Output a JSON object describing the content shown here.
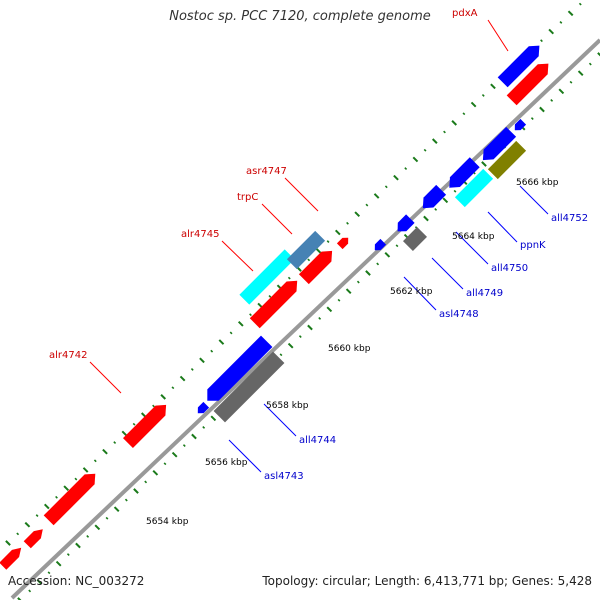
{
  "title": "Nostoc sp. PCC 7120, complete genome",
  "footer": {
    "accession": "Accession: NC_003272",
    "summary": "Topology: circular; Length: 6,413,771 bp; Genes: 5,428"
  },
  "colors": {
    "forward_gene": "#ff0000",
    "reverse_gene": "#0000ff",
    "cyan_feature": "#00ffff",
    "steel_feature": "#4682b4",
    "gray_feature": "#666666",
    "olive_feature": "#808000",
    "backbone": "#999999",
    "tick": "#1a7a1a",
    "forward_label": "#cc0000",
    "reverse_label": "#0000cc",
    "scale_label": "#000000"
  },
  "scale_labels": [
    {
      "label": "5654 kbp"
    },
    {
      "label": "5656 kbp"
    },
    {
      "label": "5658 kbp"
    },
    {
      "label": "5660 kbp"
    },
    {
      "label": "5662 kbp"
    },
    {
      "label": "5664 kbp"
    },
    {
      "label": "5666 kbp"
    }
  ],
  "gene_labels": [
    {
      "name": "pdxA",
      "strand": "forward"
    },
    {
      "name": "asr4747",
      "strand": "forward"
    },
    {
      "name": "trpC",
      "strand": "forward"
    },
    {
      "name": "alr4745",
      "strand": "forward"
    },
    {
      "name": "alr4742",
      "strand": "forward"
    },
    {
      "name": "all4752",
      "strand": "reverse"
    },
    {
      "name": "ppnK",
      "strand": "reverse"
    },
    {
      "name": "all4750",
      "strand": "reverse"
    },
    {
      "name": "all4749",
      "strand": "reverse"
    },
    {
      "name": "asl4748",
      "strand": "reverse"
    },
    {
      "name": "all4744",
      "strand": "reverse"
    },
    {
      "name": "asl4743",
      "strand": "reverse"
    }
  ]
}
